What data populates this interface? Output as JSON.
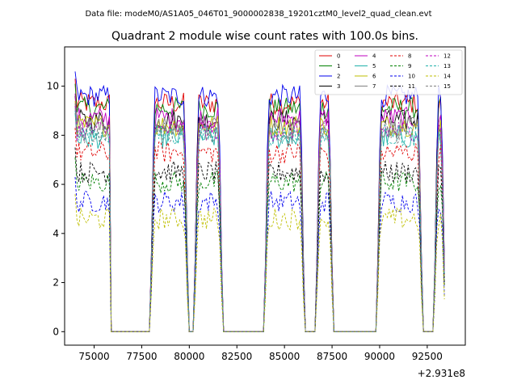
{
  "chart_data": {
    "type": "line",
    "suptitle": "Data file: modeM0/AS1A05_046T01_9000002838_19201cztM0_level2_quad_clean.evt",
    "title": "Quadrant 2 module wise count rates with 100.0s bins.",
    "xlabel": "",
    "ylabel": "",
    "x_offset_label": "+2.931e8",
    "xlim": [
      73450,
      94500
    ],
    "ylim": [
      -0.55,
      11.6
    ],
    "xticks": [
      75000,
      77500,
      80000,
      82500,
      85000,
      87500,
      90000,
      92500
    ],
    "xtick_labels": [
      "75000",
      "77500",
      "80000",
      "82500",
      "85000",
      "87500",
      "90000",
      "92500"
    ],
    "yticks": [
      0,
      2,
      4,
      6,
      8,
      10
    ],
    "ytick_labels": [
      "0",
      "2",
      "4",
      "6",
      "8",
      "10"
    ],
    "legend_position": "top-right",
    "segments": [
      {
        "x_start": 74000,
        "x_end": 75800
      },
      {
        "x_start": 78000,
        "x_end": 79900
      },
      {
        "x_start": 80300,
        "x_end": 81700
      },
      {
        "x_start": 84000,
        "x_end": 86000
      },
      {
        "x_start": 86700,
        "x_end": 87500
      },
      {
        "x_start": 89900,
        "x_end": 92200
      },
      {
        "x_start": 92900,
        "x_end": 93400
      }
    ],
    "series": [
      {
        "name": "0",
        "color": "#e00000",
        "dashed": false,
        "level": 9.3
      },
      {
        "name": "1",
        "color": "#008000",
        "dashed": false,
        "level": 9.1
      },
      {
        "name": "2",
        "color": "#0000ee",
        "dashed": false,
        "level": 9.6
      },
      {
        "name": "3",
        "color": "#000000",
        "dashed": false,
        "level": 8.6
      },
      {
        "name": "4",
        "color": "#bf00bf",
        "dashed": false,
        "level": 8.7
      },
      {
        "name": "5",
        "color": "#20b2aa",
        "dashed": false,
        "level": 7.9
      },
      {
        "name": "6",
        "color": "#bfbf00",
        "dashed": false,
        "level": 8.4
      },
      {
        "name": "7",
        "color": "#808080",
        "dashed": false,
        "level": 8.3
      },
      {
        "name": "8",
        "color": "#e00000",
        "dashed": true,
        "level": 7.3
      },
      {
        "name": "9",
        "color": "#008000",
        "dashed": true,
        "level": 6.1
      },
      {
        "name": "10",
        "color": "#0000ee",
        "dashed": true,
        "level": 5.3
      },
      {
        "name": "11",
        "color": "#000000",
        "dashed": true,
        "level": 6.5
      },
      {
        "name": "12",
        "color": "#bf00bf",
        "dashed": true,
        "level": 8.2
      },
      {
        "name": "13",
        "color": "#20b2aa",
        "dashed": true,
        "level": 8.0
      },
      {
        "name": "14",
        "color": "#bfbf00",
        "dashed": true,
        "level": 4.6
      },
      {
        "name": "15",
        "color": "#808080",
        "dashed": true,
        "level": 8.1
      }
    ]
  }
}
